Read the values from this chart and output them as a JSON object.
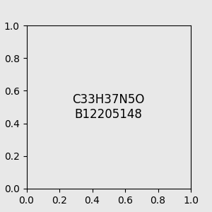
{
  "bg_color": "#e8e8e8",
  "atom_color_N": "#0000ff",
  "atom_color_O": "#ff0000",
  "atom_color_C": "#000000",
  "title": "",
  "figsize": [
    3.0,
    3.0
  ],
  "dpi": 100
}
